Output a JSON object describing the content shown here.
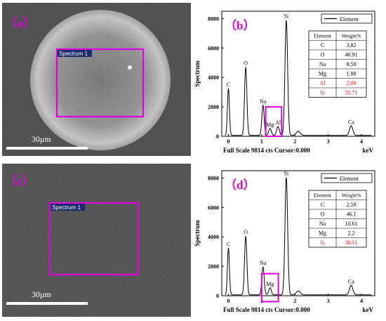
{
  "panels": [
    {
      "id": "a",
      "label": "（a）",
      "spectrum_box_label": "Spectrum 1",
      "scale_bar_label": "30μm",
      "image_description_kind": "sem-particle"
    },
    {
      "id": "c",
      "label": "（c）",
      "spectrum_box_label": "Spectrum 1",
      "scale_bar_label": "30μm",
      "image_description_kind": "sem-flat"
    }
  ],
  "chart_data": [
    {
      "type": "line",
      "panel_label": "（b）",
      "legend": "Element",
      "ylabel": "Spectrum",
      "xlabel": "keV",
      "footer": "Full Scale 9814 cts Cursor:0.000",
      "xlim": [
        -0.2,
        4.4
      ],
      "ylim": [
        0,
        8500
      ],
      "xticks": [
        0,
        1,
        2,
        3,
        4
      ],
      "yticks": [
        0,
        2000,
        4000,
        6000,
        8000
      ],
      "series": [
        {
          "peaks": [
            {
              "x": 0.0,
              "y": 3200,
              "w": 0.03
            },
            {
              "x": 0.52,
              "y": 4650,
              "w": 0.035
            },
            {
              "x": 1.04,
              "y": 2050,
              "w": 0.035
            },
            {
              "x": 1.25,
              "y": 480,
              "w": 0.04
            },
            {
              "x": 1.49,
              "y": 610,
              "w": 0.04
            },
            {
              "x": 1.74,
              "y": 7850,
              "w": 0.04
            },
            {
              "x": 2.1,
              "y": 280,
              "w": 0.06
            },
            {
              "x": 3.69,
              "y": 650,
              "w": 0.05
            }
          ]
        }
      ],
      "peak_labels": [
        {
          "text": "C",
          "x": 0.0,
          "y": 3200
        },
        {
          "text": "O",
          "x": 0.52,
          "y": 4650
        },
        {
          "text": "Na",
          "x": 1.04,
          "y": 2050
        },
        {
          "text": "Mg",
          "x": 1.25,
          "y": 480
        },
        {
          "text": "Al",
          "x": 1.49,
          "y": 610
        },
        {
          "text": "Si",
          "x": 1.74,
          "y": 7850
        },
        {
          "text": "Ca",
          "x": 3.69,
          "y": 650
        }
      ],
      "highlight_x": [
        1.12,
        1.6
      ],
      "highlight_y": [
        0,
        2000
      ],
      "table": {
        "headers": [
          "Element",
          "Weight%"
        ],
        "rows": [
          {
            "element": "C",
            "weight": "3.82",
            "highlight": false
          },
          {
            "element": "O",
            "weight": "46.91",
            "highlight": false
          },
          {
            "element": "Na",
            "weight": "9.59",
            "highlight": false
          },
          {
            "element": "Mg",
            "weight": "1.88",
            "highlight": false
          },
          {
            "element": "Al",
            "weight": "2.09",
            "highlight": true
          },
          {
            "element": "Si",
            "weight": "35.71",
            "highlight": true
          }
        ]
      }
    },
    {
      "type": "line",
      "panel_label": "（d）",
      "legend": "Element",
      "ylabel": "Spectrum",
      "xlabel": "keV",
      "footer": "Full Scale 9814 cts Cursor:0.000",
      "xlim": [
        -0.2,
        4.4
      ],
      "ylim": [
        0,
        8500
      ],
      "xticks": [
        0,
        1,
        2,
        3,
        4
      ],
      "yticks": [
        0,
        2000,
        4000,
        6000,
        8000
      ],
      "series": [
        {
          "peaks": [
            {
              "x": 0.0,
              "y": 3200,
              "w": 0.03
            },
            {
              "x": 0.52,
              "y": 4000,
              "w": 0.035
            },
            {
              "x": 1.04,
              "y": 1900,
              "w": 0.035
            },
            {
              "x": 1.25,
              "y": 480,
              "w": 0.04
            },
            {
              "x": 1.74,
              "y": 8000,
              "w": 0.04
            },
            {
              "x": 2.1,
              "y": 260,
              "w": 0.06
            },
            {
              "x": 3.69,
              "y": 650,
              "w": 0.05
            }
          ]
        }
      ],
      "peak_labels": [
        {
          "text": "C",
          "x": 0.0,
          "y": 3200
        },
        {
          "text": "O",
          "x": 0.52,
          "y": 4000
        },
        {
          "text": "Na",
          "x": 1.04,
          "y": 1900
        },
        {
          "text": "Mg",
          "x": 1.25,
          "y": 480
        },
        {
          "text": "Si",
          "x": 1.74,
          "y": 8000
        },
        {
          "text": "Ca",
          "x": 3.69,
          "y": 650
        }
      ],
      "highlight_x": [
        1.0,
        1.5
      ],
      "highlight_y": [
        -400,
        1500
      ],
      "table": {
        "headers": [
          "Element",
          "Weight%"
        ],
        "rows": [
          {
            "element": "C",
            "weight": "2.59",
            "highlight": false
          },
          {
            "element": "O",
            "weight": "46.1",
            "highlight": false
          },
          {
            "element": "Na",
            "weight": "10.61",
            "highlight": false
          },
          {
            "element": "Mg",
            "weight": "2.2",
            "highlight": false
          },
          {
            "element": "Si",
            "weight": "38.51",
            "highlight": true
          }
        ]
      }
    }
  ]
}
